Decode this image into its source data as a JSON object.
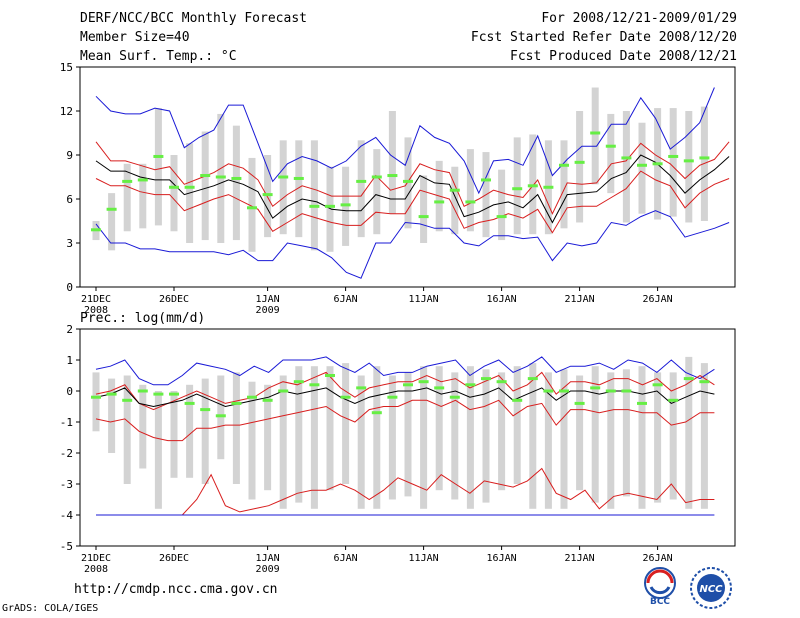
{
  "header": {
    "title": "DERF/NCC/BCC Monthly Forecast",
    "member_size": "Member Size=40",
    "variable": "Mean Surf. Temp.: °C",
    "period": "For 2008/12/21-2009/01/29",
    "started_date": "Fcst Started Refer Date 2008/12/20",
    "produced_date": "Fcst Produced Date 2008/12/21"
  },
  "footer": {
    "url": "http://cmdp.ncc.cma.gov.cn",
    "credit": "GrADS: COLA/IGES",
    "logo_bcc": "BCC",
    "logo_ncc": "NCC"
  },
  "colors": {
    "box": "#d3d3d3",
    "median": "#66ee44",
    "mean": "#000000",
    "spread": "#d81e1e",
    "extreme": "#1a1ad6"
  },
  "chart_data": [
    {
      "type": "line",
      "title": "Mean Surf. Temp.: °C",
      "ylim": [
        0,
        15
      ],
      "yticks": [
        0,
        3,
        6,
        9,
        12,
        15
      ],
      "x_tick_days": [
        0,
        5,
        11,
        16,
        21,
        26,
        31,
        36
      ],
      "x_tick_labels": [
        "21DEC",
        "26DEC",
        "1JAN",
        "6JAN",
        "11JAN",
        "16JAN",
        "21JAN",
        "26JAN"
      ],
      "x_year_labels": [
        {
          "day": 0,
          "label": "2008"
        },
        {
          "day": 11,
          "label": "2009"
        }
      ],
      "days": 40,
      "series": [
        {
          "name": "max",
          "values": [
            13.0,
            12.0,
            11.8,
            11.8,
            12.2,
            12.0,
            9.5,
            10.2,
            10.7,
            12.4,
            12.4,
            9.8,
            7.2,
            8.4,
            8.9,
            8.6,
            8.1,
            8.6,
            9.6,
            10.2,
            9.0,
            8.3,
            11.0,
            10.2,
            9.8,
            8.6,
            6.4,
            8.6,
            8.7,
            8.3,
            10.3,
            7.6,
            8.7,
            9.6,
            9.6,
            11.1,
            11.1,
            12.9,
            11.5,
            9.4,
            10.2,
            11.2,
            13.6
          ]
        },
        {
          "name": "upper",
          "values": [
            9.9,
            8.6,
            8.6,
            8.3,
            8.0,
            8.2,
            7.0,
            7.4,
            7.8,
            8.4,
            8.1,
            7.3,
            5.5,
            6.3,
            6.9,
            6.6,
            6.2,
            6.2,
            6.2,
            7.6,
            6.6,
            6.9,
            8.4,
            8.0,
            7.8,
            5.5,
            6.0,
            6.6,
            6.3,
            6.1,
            7.3,
            5.0,
            7.1,
            7.0,
            7.1,
            8.4,
            8.6,
            9.8,
            9.0,
            8.4,
            7.4,
            8.3,
            8.7,
            9.9
          ]
        },
        {
          "name": "mean",
          "values": [
            8.6,
            7.9,
            7.9,
            7.5,
            7.3,
            7.3,
            6.3,
            6.6,
            6.9,
            7.3,
            7.0,
            6.5,
            4.7,
            5.5,
            6.0,
            5.8,
            5.3,
            5.2,
            5.2,
            6.3,
            6.0,
            6.0,
            7.6,
            7.1,
            7.0,
            4.8,
            5.1,
            5.6,
            5.8,
            5.4,
            6.3,
            4.4,
            6.3,
            6.4,
            6.5,
            7.4,
            7.8,
            9.0,
            8.5,
            7.6,
            6.4,
            7.3,
            8.0,
            8.9
          ]
        },
        {
          "name": "lower",
          "values": [
            7.4,
            6.9,
            6.9,
            6.5,
            6.3,
            6.3,
            5.2,
            5.6,
            6.0,
            6.3,
            5.8,
            5.3,
            3.8,
            4.4,
            5.0,
            4.7,
            4.4,
            4.2,
            4.2,
            5.1,
            5.0,
            5.0,
            6.6,
            6.3,
            6.0,
            4.0,
            4.4,
            4.6,
            5.0,
            4.7,
            5.3,
            3.7,
            5.4,
            5.5,
            5.5,
            6.1,
            6.7,
            7.9,
            7.3,
            6.9,
            5.4,
            6.4,
            7.0,
            7.4
          ]
        },
        {
          "name": "min",
          "values": [
            4.3,
            3.0,
            3.0,
            2.6,
            2.6,
            2.4,
            2.4,
            2.4,
            2.4,
            2.2,
            2.5,
            1.8,
            1.8,
            3.0,
            2.8,
            2.6,
            2.0,
            1.0,
            0.6,
            3.0,
            3.0,
            4.4,
            4.3,
            4.0,
            4.0,
            3.0,
            2.8,
            3.5,
            3.5,
            3.3,
            3.4,
            1.8,
            3.0,
            2.8,
            3.0,
            4.4,
            4.2,
            4.8,
            5.2,
            4.8,
            3.4,
            3.7,
            4.0,
            4.4
          ]
        }
      ],
      "boxes": [
        {
          "lo": 3.2,
          "hi": 4.5,
          "median": 3.9
        },
        {
          "lo": 2.5,
          "hi": 6.4,
          "median": 5.3
        },
        {
          "lo": 3.8,
          "hi": 8.4,
          "median": 7.2
        },
        {
          "lo": 4.0,
          "hi": 8.4,
          "median": 7.3
        },
        {
          "lo": 4.2,
          "hi": 12.2,
          "median": 8.9
        },
        {
          "lo": 3.8,
          "hi": 9.0,
          "median": 6.8
        },
        {
          "lo": 3.0,
          "hi": 9.8,
          "median": 6.8
        },
        {
          "lo": 3.2,
          "hi": 10.6,
          "median": 7.6
        },
        {
          "lo": 3.0,
          "hi": 11.8,
          "median": 7.5
        },
        {
          "lo": 3.2,
          "hi": 11.0,
          "median": 7.4
        },
        {
          "lo": 2.4,
          "hi": 8.8,
          "median": 5.4
        },
        {
          "lo": 3.4,
          "hi": 9.0,
          "median": 6.3
        },
        {
          "lo": 3.6,
          "hi": 10.0,
          "median": 7.5
        },
        {
          "lo": 3.4,
          "hi": 10.0,
          "median": 7.4
        },
        {
          "lo": 2.5,
          "hi": 10.0,
          "median": 5.5
        },
        {
          "lo": 2.4,
          "hi": 8.2,
          "median": 5.5
        },
        {
          "lo": 2.8,
          "hi": 8.2,
          "median": 5.6
        },
        {
          "lo": 3.4,
          "hi": 10.0,
          "median": 7.2
        },
        {
          "lo": 3.6,
          "hi": 9.4,
          "median": 7.5
        },
        {
          "lo": 5.0,
          "hi": 12.0,
          "median": 7.6
        },
        {
          "lo": 4.0,
          "hi": 10.2,
          "median": 7.2
        },
        {
          "lo": 3.0,
          "hi": 7.6,
          "median": 4.8
        },
        {
          "lo": 3.8,
          "hi": 8.6,
          "median": 5.8
        },
        {
          "lo": 3.6,
          "hi": 8.2,
          "median": 6.6
        },
        {
          "lo": 3.8,
          "hi": 9.4,
          "median": 5.8
        },
        {
          "lo": 3.4,
          "hi": 9.2,
          "median": 7.3
        },
        {
          "lo": 3.2,
          "hi": 8.0,
          "median": 4.8
        },
        {
          "lo": 3.6,
          "hi": 10.2,
          "median": 6.7
        },
        {
          "lo": 3.6,
          "hi": 10.4,
          "median": 6.9
        },
        {
          "lo": 3.6,
          "hi": 10.0,
          "median": 6.8
        },
        {
          "lo": 4.0,
          "hi": 10.0,
          "median": 8.3
        },
        {
          "lo": 4.4,
          "hi": 12.0,
          "median": 8.5
        },
        {
          "lo": 7.0,
          "hi": 13.6,
          "median": 10.5
        },
        {
          "lo": 6.4,
          "hi": 11.8,
          "median": 9.6
        },
        {
          "lo": 4.4,
          "hi": 12.0,
          "median": 8.8
        },
        {
          "lo": 5.0,
          "hi": 11.2,
          "median": 8.3
        },
        {
          "lo": 4.6,
          "hi": 12.2,
          "median": 8.4
        },
        {
          "lo": 4.8,
          "hi": 12.2,
          "median": 8.9
        },
        {
          "lo": 4.4,
          "hi": 12.0,
          "median": 8.6
        },
        {
          "lo": 4.5,
          "hi": 12.3,
          "median": 8.8
        }
      ]
    },
    {
      "type": "line",
      "title": "Prec.: log(mm/d)",
      "ylim": [
        -5,
        2
      ],
      "yticks": [
        -5,
        -4,
        -3,
        -2,
        -1,
        0,
        1,
        2
      ],
      "x_tick_days": [
        0,
        5,
        11,
        16,
        21,
        26,
        31,
        36
      ],
      "x_tick_labels": [
        "21DEC",
        "26DEC",
        "1JAN",
        "6JAN",
        "11JAN",
        "16JAN",
        "21JAN",
        "26JAN"
      ],
      "x_year_labels": [
        {
          "day": 0,
          "label": "2008"
        },
        {
          "day": 11,
          "label": "2009"
        }
      ],
      "days": 40,
      "series": [
        {
          "name": "max",
          "values": [
            0.7,
            0.8,
            1.0,
            0.4,
            0.2,
            0.2,
            0.5,
            0.9,
            0.8,
            0.7,
            0.5,
            0.8,
            0.6,
            1.0,
            1.0,
            1.0,
            1.1,
            0.8,
            0.6,
            0.9,
            0.5,
            0.6,
            0.6,
            0.8,
            0.9,
            1.0,
            0.5,
            0.8,
            1.0,
            0.6,
            0.8,
            1.1,
            0.6,
            0.8,
            0.8,
            0.9,
            0.7,
            1.0,
            0.9,
            0.6,
            1.0,
            0.6,
            0.4,
            0.7
          ]
        },
        {
          "name": "upper",
          "values": [
            -0.1,
            0.0,
            0.2,
            -0.4,
            -0.6,
            -0.4,
            -0.2,
            0.0,
            -0.2,
            -0.4,
            -0.3,
            -0.2,
            0.1,
            0.3,
            0.2,
            0.4,
            0.6,
            0.1,
            -0.2,
            0.1,
            0.2,
            0.3,
            0.3,
            0.5,
            0.3,
            0.4,
            0.1,
            0.3,
            0.5,
            0.0,
            0.2,
            0.6,
            -0.1,
            0.3,
            0.3,
            0.2,
            0.4,
            0.4,
            0.2,
            0.4,
            0.0,
            0.2,
            0.5,
            0.2
          ]
        },
        {
          "name": "mean",
          "values": [
            -0.2,
            -0.1,
            0.1,
            -0.4,
            -0.5,
            -0.4,
            -0.3,
            -0.1,
            -0.3,
            -0.5,
            -0.4,
            -0.3,
            -0.2,
            0.0,
            -0.1,
            0.0,
            0.1,
            -0.2,
            -0.4,
            -0.2,
            -0.1,
            0.0,
            0.0,
            0.1,
            -0.1,
            0.0,
            -0.2,
            -0.1,
            0.1,
            -0.3,
            -0.1,
            0.1,
            -0.3,
            0.0,
            0.0,
            -0.1,
            0.0,
            0.0,
            -0.1,
            0.0,
            -0.4,
            -0.2,
            0.0,
            -0.1
          ]
        },
        {
          "name": "lower",
          "values": [
            -0.9,
            -1.0,
            -0.9,
            -1.3,
            -1.5,
            -1.6,
            -1.6,
            -1.2,
            -1.2,
            -1.1,
            -1.1,
            -1.0,
            -0.9,
            -0.8,
            -0.7,
            -0.6,
            -0.5,
            -0.8,
            -1.0,
            -0.6,
            -0.5,
            -0.5,
            -0.3,
            -0.3,
            -0.5,
            -0.3,
            -0.6,
            -0.5,
            -0.3,
            -0.8,
            -0.5,
            -0.4,
            -1.1,
            -0.6,
            -0.6,
            -0.7,
            -0.6,
            -0.6,
            -0.7,
            -0.7,
            -1.1,
            -1.0,
            -0.7,
            -0.7
          ]
        },
        {
          "name": "min",
          "values": [
            -4.0,
            -4.0,
            -4.0,
            -4.0,
            -4.0,
            -4.0,
            -4.0,
            -3.5,
            -2.7,
            -3.7,
            -3.9,
            -3.8,
            -3.7,
            -3.5,
            -3.3,
            -3.2,
            -3.2,
            -3.0,
            -3.2,
            -3.5,
            -3.2,
            -2.8,
            -3.0,
            -3.2,
            -2.7,
            -3.0,
            -3.3,
            -2.9,
            -3.0,
            -3.1,
            -2.9,
            -2.5,
            -3.3,
            -3.5,
            -3.2,
            -3.8,
            -3.4,
            -3.3,
            -3.4,
            -3.5,
            -3.0,
            -3.6,
            -3.5,
            -3.5
          ]
        },
        {
          "name": "floor",
          "values": [
            -4.0,
            -4.0,
            -4.0,
            -4.0,
            -4.0,
            -4.0,
            -4.0,
            -4.0,
            -4.0,
            -4.0,
            -4.0,
            -4.0,
            -4.0,
            -4.0,
            -4.0,
            -4.0,
            -4.0,
            -4.0,
            -4.0,
            -4.0,
            -4.0,
            -4.0,
            -4.0,
            -4.0,
            -4.0,
            -4.0,
            -4.0,
            -4.0,
            -4.0,
            -4.0,
            -4.0,
            -4.0,
            -4.0,
            -4.0,
            -4.0,
            -4.0,
            -4.0,
            -4.0,
            -4.0,
            -4.0,
            -4.0,
            -4.0,
            -4.0,
            -4.0
          ]
        }
      ],
      "boxes": [
        {
          "lo": -1.3,
          "hi": 0.6,
          "median": -0.2
        },
        {
          "lo": -2.0,
          "hi": 0.4,
          "median": -0.1
        },
        {
          "lo": -3.0,
          "hi": 0.5,
          "median": -0.3
        },
        {
          "lo": -2.5,
          "hi": 0.2,
          "median": 0.0
        },
        {
          "lo": -3.8,
          "hi": 0.0,
          "median": -0.1
        },
        {
          "lo": -2.8,
          "hi": 0.0,
          "median": -0.1
        },
        {
          "lo": -2.8,
          "hi": 0.2,
          "median": -0.4
        },
        {
          "lo": -3.0,
          "hi": 0.4,
          "median": -0.6
        },
        {
          "lo": -2.2,
          "hi": 0.5,
          "median": -0.8
        },
        {
          "lo": -3.0,
          "hi": 0.6,
          "median": -0.4
        },
        {
          "lo": -3.5,
          "hi": 0.3,
          "median": -0.2
        },
        {
          "lo": -3.2,
          "hi": 0.2,
          "median": -0.3
        },
        {
          "lo": -3.8,
          "hi": 0.5,
          "median": 0.0
        },
        {
          "lo": -3.6,
          "hi": 0.8,
          "median": 0.3
        },
        {
          "lo": -3.8,
          "hi": 0.8,
          "median": 0.2
        },
        {
          "lo": -3.2,
          "hi": 0.8,
          "median": 0.5
        },
        {
          "lo": -3.0,
          "hi": 0.9,
          "median": -0.2
        },
        {
          "lo": -3.8,
          "hi": 0.5,
          "median": 0.1
        },
        {
          "lo": -3.8,
          "hi": 0.8,
          "median": -0.7
        },
        {
          "lo": -3.5,
          "hi": 0.5,
          "median": -0.2
        },
        {
          "lo": -3.4,
          "hi": 0.6,
          "median": 0.2
        },
        {
          "lo": -3.8,
          "hi": 0.8,
          "median": 0.3
        },
        {
          "lo": -3.2,
          "hi": 0.8,
          "median": 0.1
        },
        {
          "lo": -3.5,
          "hi": 0.6,
          "median": -0.2
        },
        {
          "lo": -3.8,
          "hi": 0.8,
          "median": 0.2
        },
        {
          "lo": -3.6,
          "hi": 0.7,
          "median": 0.4
        },
        {
          "lo": -3.2,
          "hi": 0.6,
          "median": 0.3
        },
        {
          "lo": -3.0,
          "hi": 0.8,
          "median": -0.3
        },
        {
          "lo": -3.8,
          "hi": 0.9,
          "median": 0.4
        },
        {
          "lo": -3.8,
          "hi": 0.6,
          "median": 0.0
        },
        {
          "lo": -3.8,
          "hi": 0.7,
          "median": 0.0
        },
        {
          "lo": -3.2,
          "hi": 0.5,
          "median": -0.4
        },
        {
          "lo": -3.6,
          "hi": 0.8,
          "median": 0.1
        },
        {
          "lo": -3.8,
          "hi": 0.6,
          "median": 0.0
        },
        {
          "lo": -3.4,
          "hi": 0.7,
          "median": 0.0
        },
        {
          "lo": -3.8,
          "hi": 0.8,
          "median": -0.4
        },
        {
          "lo": -3.6,
          "hi": 0.6,
          "median": 0.2
        },
        {
          "lo": -3.5,
          "hi": 0.6,
          "median": -0.3
        },
        {
          "lo": -3.8,
          "hi": 1.1,
          "median": 0.4
        },
        {
          "lo": -3.8,
          "hi": 0.9,
          "median": 0.3
        }
      ]
    }
  ]
}
